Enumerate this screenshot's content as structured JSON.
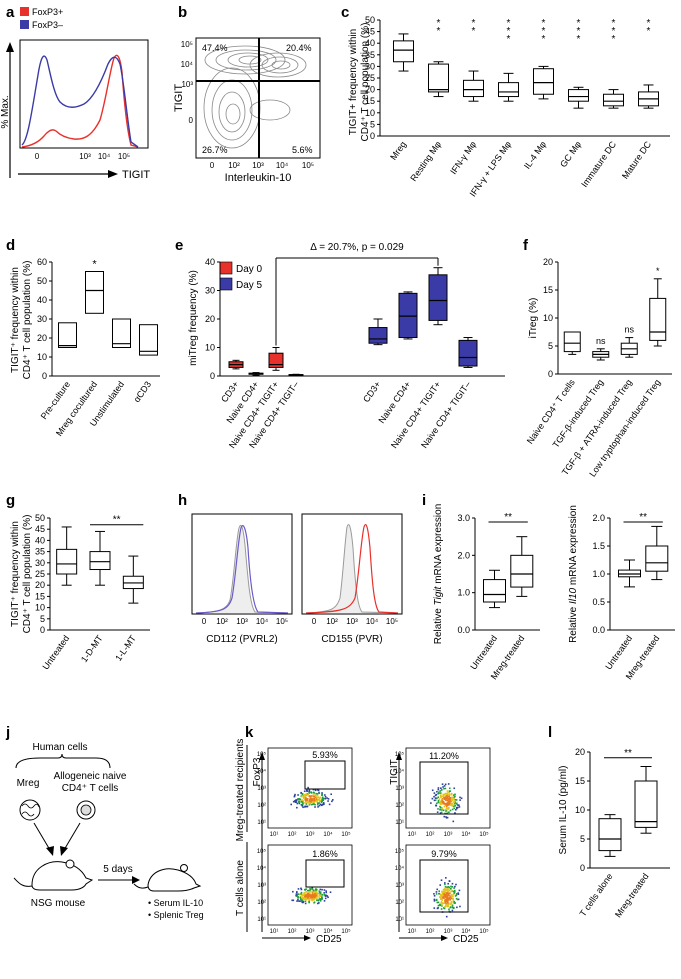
{
  "panel_labels": [
    "a",
    "b",
    "c",
    "d",
    "e",
    "f",
    "g",
    "h",
    "i",
    "j",
    "k",
    "l"
  ],
  "colors": {
    "red": "#e8312b",
    "blue": "#3b3ba8",
    "purple": "#6a5acd",
    "gray": "#9a9a9a",
    "flow_blue": "#2b3f9e",
    "flow_green": "#1e9e3a",
    "flow_yellow": "#e0c419",
    "flow_orange": "#e87a1d"
  },
  "chart_data": [
    {
      "panel": "a",
      "type": "line",
      "ylabel": "% Max.",
      "xlabel": "TIGIT",
      "legend": [
        "FoxP3+",
        "FoxP3–"
      ],
      "tick_labels": [
        "0",
        "10³",
        "10⁴",
        "10⁵"
      ]
    },
    {
      "panel": "b",
      "type": "scatter",
      "ylabel": "TIGIT",
      "xlabel": "Interleukin-10",
      "quadrants": {
        "top_left": "47.4%",
        "top_right": "20.4%",
        "bottom_left": "26.7%",
        "bottom_right": "5.6%"
      },
      "x_ticks": [
        "0",
        "10²",
        "10³",
        "10⁴",
        "10⁵"
      ],
      "y_ticks": [
        "10⁵",
        "10⁴",
        "10³",
        "0"
      ]
    },
    {
      "panel": "c",
      "type": "box",
      "ylabel": "TIGIT+ frequency within CD4⁺ T cell population (%)",
      "ylim": [
        0,
        50
      ],
      "yticks": [
        0,
        5,
        10,
        15,
        20,
        25,
        30,
        35,
        40,
        45,
        50
      ],
      "categories": [
        "Mreg",
        "Resting Mφ",
        "IFN-γ Mφ",
        "IFN-γ + LPS Mφ",
        "IL-4 Mφ",
        "GC Mφ",
        "Immature DC",
        "Mature DC"
      ],
      "boxes": [
        {
          "min": 28,
          "q1": 32,
          "median": 37,
          "q3": 41,
          "max": 44
        },
        {
          "min": 17,
          "q1": 19,
          "median": 20,
          "q3": 31,
          "max": 32
        },
        {
          "min": 15,
          "q1": 17,
          "median": 20,
          "q3": 24,
          "max": 28
        },
        {
          "min": 15,
          "q1": 17,
          "median": 19,
          "q3": 23,
          "max": 27
        },
        {
          "min": 16,
          "q1": 18,
          "median": 23,
          "q3": 29,
          "max": 30
        },
        {
          "min": 12,
          "q1": 15,
          "median": 17,
          "q3": 20,
          "max": 21
        },
        {
          "min": 12,
          "q1": 13,
          "median": 15,
          "q3": 18,
          "max": 20
        },
        {
          "min": 12,
          "q1": 13,
          "median": 16,
          "q3": 19,
          "max": 22
        }
      ],
      "significance": [
        "",
        "**",
        "**",
        "***",
        "***",
        "***",
        "***",
        "**"
      ]
    },
    {
      "panel": "d",
      "type": "box",
      "ylabel": "TIGIT⁺ frequency within CD4⁺ T cell population (%)",
      "ylim": [
        0,
        60
      ],
      "yticks": [
        0,
        10,
        20,
        30,
        40,
        50,
        60
      ],
      "categories": [
        "Pre-culture",
        "Mreg cocultured",
        "Unstimulated",
        "αCD3"
      ],
      "boxes": [
        {
          "min": 15,
          "q1": 15,
          "median": 16,
          "q3": 28,
          "max": 28
        },
        {
          "min": 33,
          "q1": 33,
          "median": 45,
          "q3": 55,
          "max": 55
        },
        {
          "min": 15,
          "q1": 15,
          "median": 17,
          "q3": 30,
          "max": 30
        },
        {
          "min": 11,
          "q1": 11,
          "median": 13,
          "q3": 27,
          "max": 27
        }
      ],
      "significance": [
        "",
        "*",
        "",
        ""
      ]
    },
    {
      "panel": "e",
      "type": "box",
      "ylabel": "miTreg frequency (%)",
      "ylim": [
        0,
        40
      ],
      "yticks": [
        0,
        10,
        20,
        30,
        40
      ],
      "legend": [
        "Day 0",
        "Day 5"
      ],
      "annotation": "Δ = 20.7%, p = 0.029",
      "categories": [
        "CD3+",
        "Naive CD4+",
        "Naive CD4+ TIGIT+",
        "Naive CD4+ TIGIT–",
        "CD3+",
        "Naive CD4+",
        "Naive CD4+ TIGIT+",
        "Naive CD4+ TIGIT–"
      ],
      "series": [
        {
          "name": "Day 0",
          "boxes": [
            {
              "min": 2.5,
              "q1": 3,
              "median": 4,
              "q3": 5,
              "max": 5.5
            },
            {
              "min": 0.3,
              "q1": 0.6,
              "median": 0.8,
              "q3": 1,
              "max": 1.2
            },
            {
              "min": 2,
              "q1": 3,
              "median": 4,
              "q3": 8,
              "max": 10
            },
            {
              "min": 0.2,
              "q1": 0.3,
              "median": 0.4,
              "q3": 0.5,
              "max": 0.6
            }
          ]
        },
        {
          "name": "Day 5",
          "boxes": [
            {
              "min": 11,
              "q1": 11.5,
              "median": 13,
              "q3": 17,
              "max": 20
            },
            {
              "min": 13,
              "q1": 13.5,
              "median": 21,
              "q3": 29,
              "max": 29.5
            },
            {
              "min": 18,
              "q1": 19.5,
              "median": 26.5,
              "q3": 35.5,
              "max": 38
            },
            {
              "min": 3,
              "q1": 3.5,
              "median": 6.5,
              "q3": 12.5,
              "max": 13.5
            }
          ]
        }
      ]
    },
    {
      "panel": "f",
      "type": "box",
      "ylabel": "iTreg (%)",
      "ylim": [
        0,
        20
      ],
      "yticks": [
        0,
        5,
        10,
        15,
        20
      ],
      "categories": [
        "Naive CD4⁺ T cells",
        "TGF-β-induced Treg",
        "TGF-β + ATRA-induced Treg",
        "Low tryptophan-induced Treg"
      ],
      "boxes": [
        {
          "min": 3.5,
          "q1": 4,
          "median": 5.5,
          "q3": 7.5,
          "max": 7.5
        },
        {
          "min": 2.5,
          "q1": 3,
          "median": 3.5,
          "q3": 4,
          "max": 4.5
        },
        {
          "min": 3,
          "q1": 3.5,
          "median": 4.5,
          "q3": 5.5,
          "max": 6.5
        },
        {
          "min": 5,
          "q1": 6,
          "median": 7.5,
          "q3": 13.5,
          "max": 17
        }
      ],
      "significance": [
        "",
        "ns",
        "ns",
        "*"
      ]
    },
    {
      "panel": "g",
      "type": "box",
      "ylabel": "TIGIT⁺ frequency within CD4⁺ T cell population (%)",
      "ylim": [
        0,
        50
      ],
      "yticks": [
        0,
        5,
        10,
        15,
        20,
        25,
        30,
        35,
        40,
        45,
        50
      ],
      "categories": [
        "Untreated",
        "1-D-MT",
        "1-L-MT"
      ],
      "boxes": [
        {
          "min": 20,
          "q1": 25,
          "median": 29.5,
          "q3": 36,
          "max": 46
        },
        {
          "min": 20,
          "q1": 27,
          "median": 30.5,
          "q3": 35,
          "max": 44
        },
        {
          "min": 12,
          "q1": 18.5,
          "median": 21,
          "q3": 24,
          "max": 33
        }
      ],
      "significance_bracket": {
        "from": 1,
        "to": 2,
        "label": "**"
      }
    },
    {
      "panel": "h",
      "type": "line",
      "plots": [
        {
          "xlabel": "CD112 (PVRL2)",
          "tick_labels": [
            "0",
            "10²",
            "10³",
            "10⁴",
            "10⁵"
          ]
        },
        {
          "xlabel": "CD155 (PVR)",
          "tick_labels": [
            "0",
            "10²",
            "10³",
            "10⁴",
            "10⁵"
          ]
        }
      ]
    },
    {
      "panel": "i",
      "type": "box",
      "plots": [
        {
          "ylabel_pre": "Relative ",
          "ylabel_gene": "Tigit",
          "ylabel_post": " mRNA expression",
          "ylim": [
            0,
            3
          ],
          "yticks": [
            "0.0",
            "1.0",
            "2.0",
            "3.0"
          ],
          "categories": [
            "Untreated",
            "Mreg-treated"
          ],
          "boxes": [
            {
              "min": 0.6,
              "q1": 0.75,
              "median": 0.95,
              "q3": 1.35,
              "max": 1.6
            },
            {
              "min": 0.9,
              "q1": 1.15,
              "median": 1.5,
              "q3": 2.0,
              "max": 2.5
            }
          ],
          "significance": "**"
        },
        {
          "ylabel_pre": "Relative ",
          "ylabel_gene": "Il10",
          "ylabel_post": " mRNA expression",
          "ylim": [
            0,
            2
          ],
          "yticks": [
            "0.0",
            "0.5",
            "1.0",
            "1.5",
            "2.0"
          ],
          "categories": [
            "Untreated",
            "Mreg-treated"
          ],
          "boxes": [
            {
              "min": 0.77,
              "q1": 0.95,
              "median": 1.0,
              "q3": 1.07,
              "max": 1.25
            },
            {
              "min": 0.9,
              "q1": 1.05,
              "median": 1.2,
              "q3": 1.5,
              "max": 1.85
            }
          ],
          "significance": "**"
        }
      ]
    },
    {
      "panel": "k",
      "type": "scatter",
      "row_labels": [
        "Mreg-treated recipients",
        "T cells alone"
      ],
      "col_ylabels": [
        "FoxP3",
        "TIGIT"
      ],
      "xlabel": "CD25",
      "gates": [
        [
          "5.93%",
          "11.20%"
        ],
        [
          "1.86%",
          "9.79%"
        ]
      ],
      "tick_labels": [
        "10¹",
        "10²",
        "10³",
        "10⁴",
        "10⁵"
      ]
    },
    {
      "panel": "l",
      "type": "box",
      "ylabel": "Serum IL-10 (pg/ml)",
      "ylim": [
        0,
        20
      ],
      "yticks": [
        0,
        5,
        10,
        15,
        20
      ],
      "categories": [
        "T cells alone",
        "Mreg-treated"
      ],
      "boxes": [
        {
          "min": 2,
          "q1": 3,
          "median": 5,
          "q3": 8.5,
          "max": 9.2
        },
        {
          "min": 6,
          "q1": 7,
          "median": 8,
          "q3": 15,
          "max": 17.5
        }
      ],
      "significance": "**"
    }
  ],
  "schematic": {
    "human_cells": "Human cells",
    "mreg": "Mreg",
    "naive_cells_line1": "Allogeneic naive",
    "naive_cells_line2": "CD4⁺ T cells",
    "mouse": "NSG mouse",
    "duration": "5 days",
    "readout1": "• Serum IL-10",
    "readout2": "• Splenic Treg"
  }
}
